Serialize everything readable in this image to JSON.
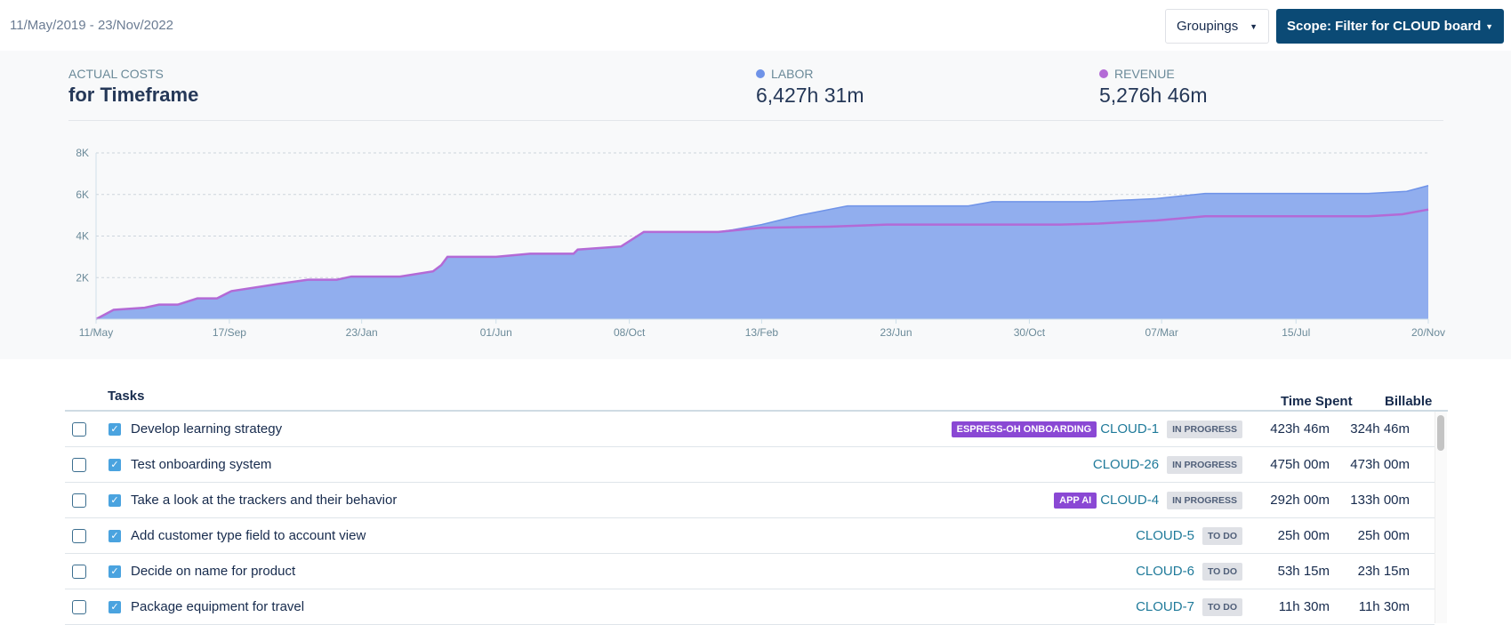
{
  "header": {
    "date_range": "11/May/2019 - 23/Nov/2022",
    "groupings_label": "Groupings",
    "scope_label": "Scope: Filter for CLOUD board"
  },
  "summary": {
    "label": "ACTUAL COSTS",
    "title": "for Timeframe",
    "labor_label": "LABOR",
    "labor_value": "6,427h 31m",
    "revenue_label": "REVENUE",
    "revenue_value": "5,276h 46m"
  },
  "colors": {
    "labor": "#6f93e8",
    "labor_fill": "#91aeee",
    "revenue": "#b36ad6",
    "scope_button": "#0b4a75",
    "epic": "#8a48d4"
  },
  "chart_data": {
    "type": "area",
    "ylim": [
      0,
      8000
    ],
    "yticks": [
      {
        "v": 2000,
        "label": "2K"
      },
      {
        "v": 4000,
        "label": "4K"
      },
      {
        "v": 6000,
        "label": "6K"
      },
      {
        "v": 8000,
        "label": "8K"
      }
    ],
    "xlim": [
      "2019-05-11",
      "2022-11-20"
    ],
    "xticks": [
      {
        "d": "2019-05-11",
        "label": "11/May"
      },
      {
        "d": "2019-09-17",
        "label": "17/Sep"
      },
      {
        "d": "2020-01-23",
        "label": "23/Jan"
      },
      {
        "d": "2020-06-01",
        "label": "01/Jun"
      },
      {
        "d": "2020-10-08",
        "label": "08/Oct"
      },
      {
        "d": "2021-02-13",
        "label": "13/Feb"
      },
      {
        "d": "2021-06-23",
        "label": "23/Jun"
      },
      {
        "d": "2021-10-30",
        "label": "30/Oct"
      },
      {
        "d": "2022-03-07",
        "label": "07/Mar"
      },
      {
        "d": "2022-07-15",
        "label": "15/Jul"
      },
      {
        "d": "2022-11-20",
        "label": "20/Nov"
      }
    ],
    "grid": true,
    "series": [
      {
        "name": "LABOR",
        "type": "area",
        "points": [
          [
            "2019-05-11",
            0
          ],
          [
            "2019-05-28",
            450
          ],
          [
            "2019-06-27",
            550
          ],
          [
            "2019-07-11",
            700
          ],
          [
            "2019-07-29",
            700
          ],
          [
            "2019-08-17",
            1000
          ],
          [
            "2019-09-05",
            1000
          ],
          [
            "2019-09-19",
            1350
          ],
          [
            "2019-11-04",
            1700
          ],
          [
            "2019-12-02",
            1900
          ],
          [
            "2019-12-30",
            1900
          ],
          [
            "2020-01-13",
            2050
          ],
          [
            "2020-02-29",
            2050
          ],
          [
            "2020-04-01",
            2300
          ],
          [
            "2020-04-09",
            2600
          ],
          [
            "2020-04-15",
            3000
          ],
          [
            "2020-06-01",
            3000
          ],
          [
            "2020-07-04",
            3150
          ],
          [
            "2020-08-15",
            3150
          ],
          [
            "2020-08-19",
            3350
          ],
          [
            "2020-09-30",
            3500
          ],
          [
            "2020-10-22",
            4200
          ],
          [
            "2021-01-02",
            4200
          ],
          [
            "2021-01-16",
            4300
          ],
          [
            "2021-02-13",
            4550
          ],
          [
            "2021-03-22",
            5000
          ],
          [
            "2021-05-07",
            5450
          ],
          [
            "2021-09-01",
            5450
          ],
          [
            "2021-09-24",
            5650
          ],
          [
            "2021-12-27",
            5650
          ],
          [
            "2022-03-02",
            5800
          ],
          [
            "2022-04-18",
            6050
          ],
          [
            "2022-09-23",
            6050
          ],
          [
            "2022-10-30",
            6150
          ],
          [
            "2022-11-20",
            6427
          ]
        ]
      },
      {
        "name": "REVENUE",
        "type": "line",
        "points": [
          [
            "2019-05-11",
            0
          ],
          [
            "2019-05-28",
            450
          ],
          [
            "2019-06-27",
            550
          ],
          [
            "2019-07-11",
            700
          ],
          [
            "2019-07-29",
            700
          ],
          [
            "2019-08-17",
            1000
          ],
          [
            "2019-09-05",
            1000
          ],
          [
            "2019-09-19",
            1350
          ],
          [
            "2019-11-04",
            1700
          ],
          [
            "2019-12-02",
            1900
          ],
          [
            "2019-12-30",
            1900
          ],
          [
            "2020-01-13",
            2050
          ],
          [
            "2020-02-29",
            2050
          ],
          [
            "2020-04-01",
            2300
          ],
          [
            "2020-04-09",
            2600
          ],
          [
            "2020-04-15",
            3000
          ],
          [
            "2020-06-01",
            3000
          ],
          [
            "2020-07-04",
            3150
          ],
          [
            "2020-08-15",
            3150
          ],
          [
            "2020-08-19",
            3350
          ],
          [
            "2020-09-30",
            3500
          ],
          [
            "2020-10-22",
            4200
          ],
          [
            "2021-01-02",
            4200
          ],
          [
            "2021-02-13",
            4400
          ],
          [
            "2021-04-19",
            4450
          ],
          [
            "2021-06-14",
            4550
          ],
          [
            "2021-11-29",
            4550
          ],
          [
            "2022-01-05",
            4600
          ],
          [
            "2022-03-02",
            4750
          ],
          [
            "2022-04-18",
            4950
          ],
          [
            "2022-09-23",
            4950
          ],
          [
            "2022-10-26",
            5050
          ],
          [
            "2022-11-20",
            5276
          ]
        ]
      }
    ]
  },
  "table": {
    "col_tasks": "Tasks",
    "col_time": "Time Spent",
    "col_billable": "Billable",
    "rows": [
      {
        "name": "Develop learning strategy",
        "epic": "ESPRESS-OH ONBOARDING",
        "key": "CLOUD-1",
        "status": "IN PROGRESS",
        "time": "423h 46m",
        "billable": "324h 46m"
      },
      {
        "name": "Test onboarding system",
        "epic": "",
        "key": "CLOUD-26",
        "status": "IN PROGRESS",
        "time": "475h 00m",
        "billable": "473h 00m"
      },
      {
        "name": "Take a look at the trackers and their behavior",
        "epic": "APP AI",
        "key": "CLOUD-4",
        "status": "IN PROGRESS",
        "time": "292h 00m",
        "billable": "133h 00m"
      },
      {
        "name": "Add customer type field to account view",
        "epic": "",
        "key": "CLOUD-5",
        "status": "TO DO",
        "time": "25h 00m",
        "billable": "25h 00m"
      },
      {
        "name": "Decide on name for product",
        "epic": "",
        "key": "CLOUD-6",
        "status": "TO DO",
        "time": "53h 15m",
        "billable": "23h 15m"
      },
      {
        "name": "Package equipment for travel",
        "epic": "",
        "key": "CLOUD-7",
        "status": "TO DO",
        "time": "11h 30m",
        "billable": "11h 30m"
      }
    ]
  }
}
